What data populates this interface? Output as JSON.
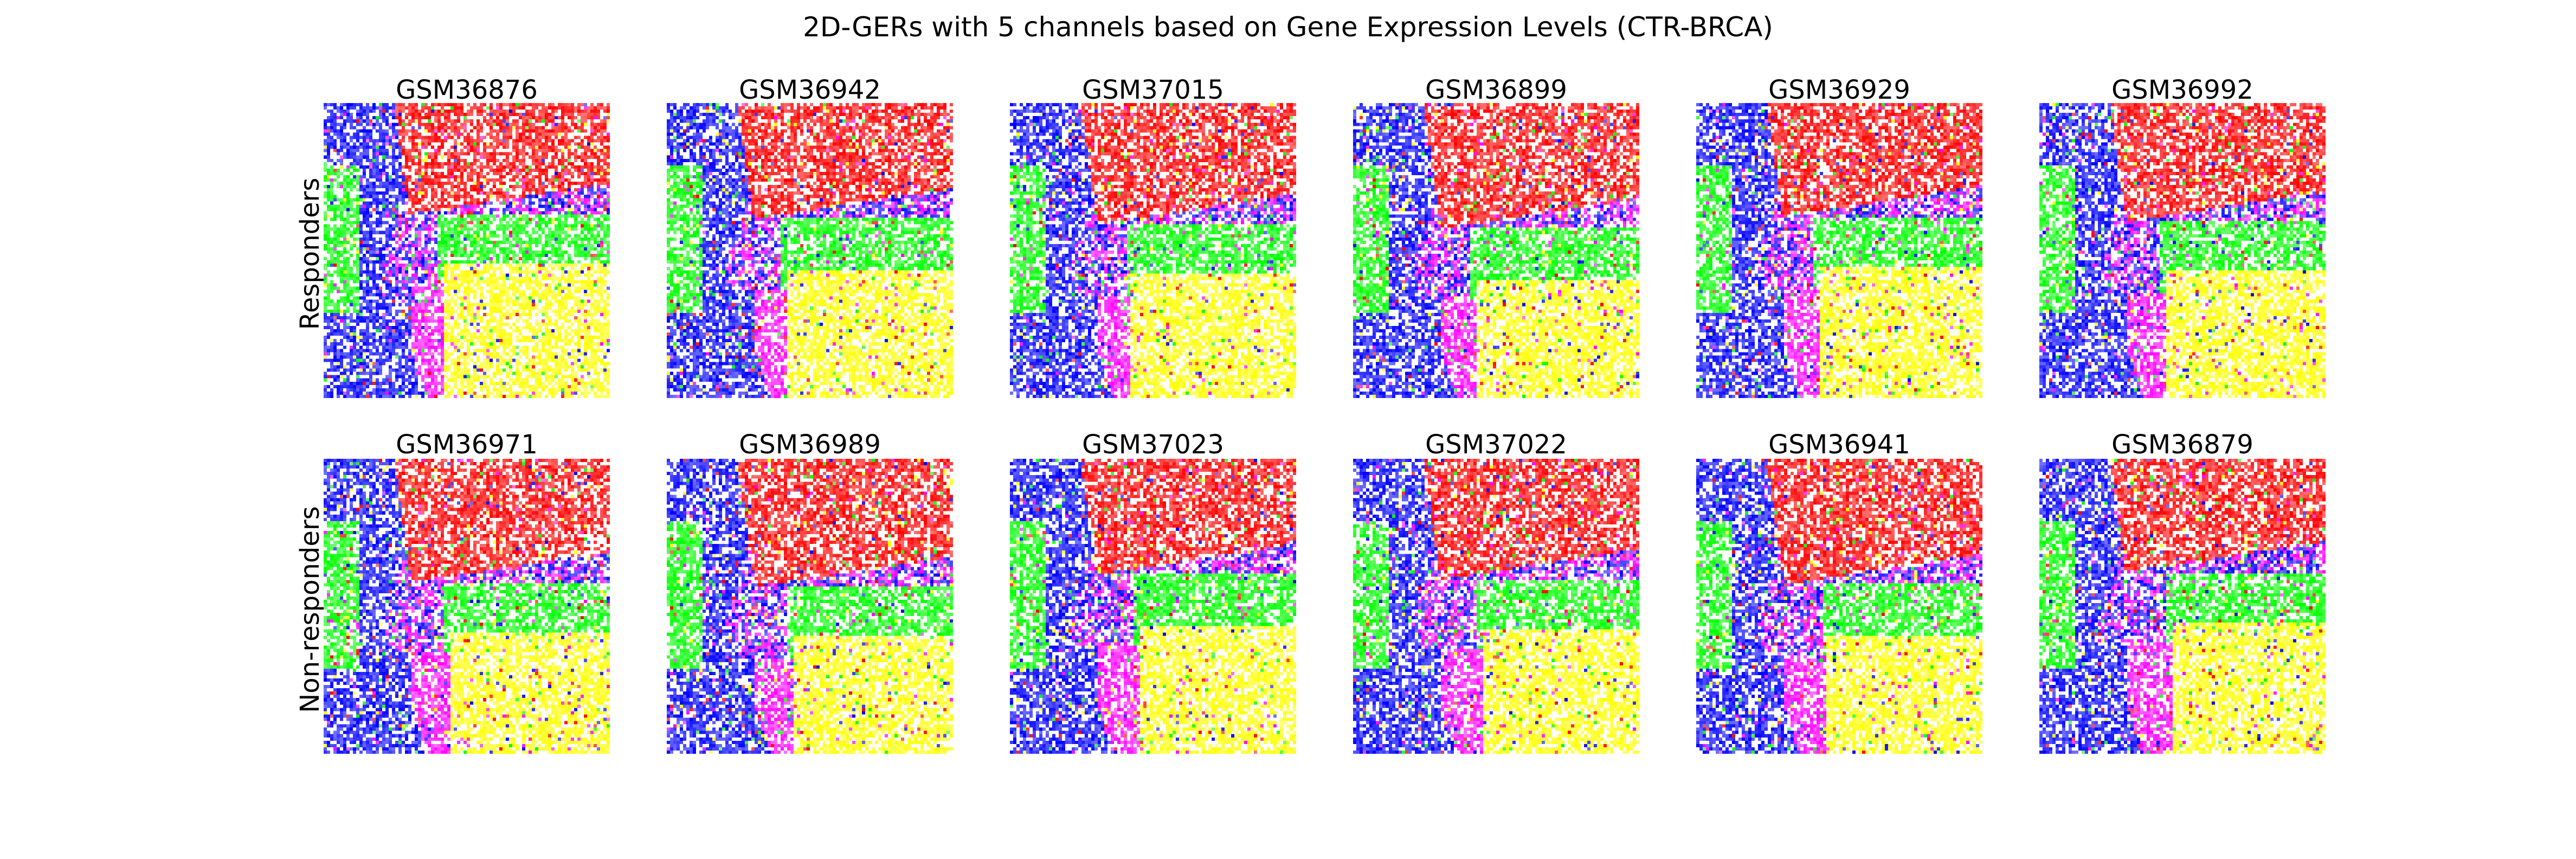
{
  "figure": {
    "title": "2D-GERs with 5 channels based on Gene Expression Levels (CTR-BRCA)"
  },
  "rows": [
    {
      "label": "Responders",
      "samples": [
        "GSM36876",
        "GSM36942",
        "GSM37015",
        "GSM36899",
        "GSM36929",
        "GSM36992"
      ]
    },
    {
      "label": "Non-responders",
      "samples": [
        "GSM36971",
        "GSM36989",
        "GSM37023",
        "GSM37022",
        "GSM36941",
        "GSM36879"
      ]
    }
  ],
  "palette": {
    "red": "#ff0000",
    "green": "#00ff00",
    "blue": "#0000ff",
    "magenta": "#ff00ff",
    "yellow": "#ffff00",
    "white": "#ffffff"
  }
}
